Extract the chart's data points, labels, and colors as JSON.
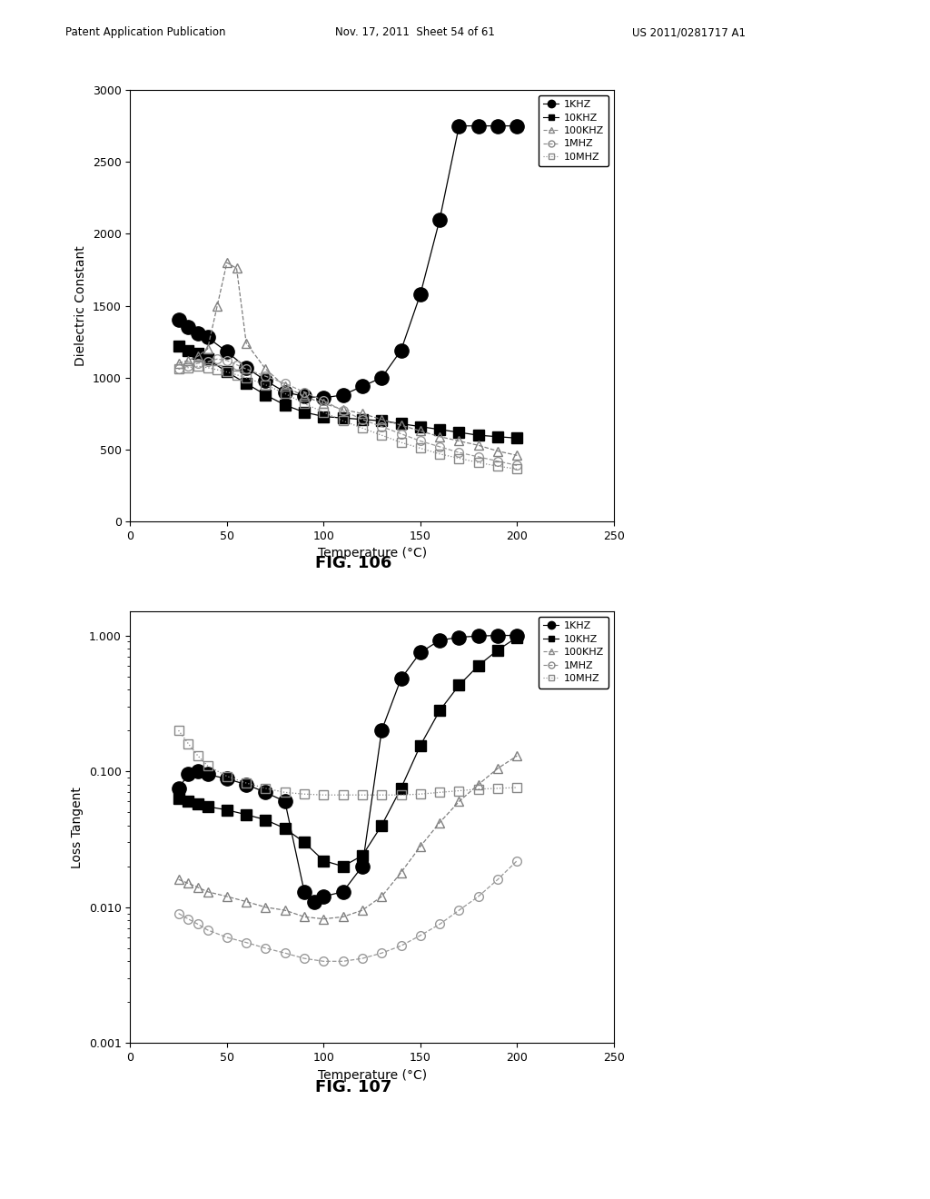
{
  "header_left": "Patent Application Publication",
  "header_mid": "Nov. 17, 2011  Sheet 54 of 61",
  "header_right": "US 2011/0281717 A1",
  "fig1_title": "FIG. 106",
  "fig2_title": "FIG. 107",
  "fig1_ylabel": "Dielectric Constant",
  "fig1_xlabel": "Temperature (°C)",
  "fig2_ylabel": "Loss Tangent",
  "fig2_xlabel": "Temperature (°C)",
  "fig1_ylim": [
    0,
    3000
  ],
  "fig1_xlim": [
    0,
    250
  ],
  "fig2_ylim_log": [
    0.001,
    1.5
  ],
  "fig2_xlim": [
    0,
    250
  ],
  "series": [
    "1KHZ",
    "10KHZ",
    "100KHZ",
    "1MHZ",
    "10MHZ"
  ],
  "fig1_data": {
    "1KHZ": {
      "x": [
        25,
        30,
        35,
        40,
        50,
        60,
        70,
        80,
        90,
        100,
        110,
        120,
        130,
        140,
        150,
        160,
        170,
        180,
        190,
        200
      ],
      "y": [
        1400,
        1350,
        1310,
        1280,
        1180,
        1070,
        980,
        900,
        870,
        860,
        880,
        940,
        1000,
        1190,
        1580,
        2100,
        2750,
        2750,
        2750,
        2750
      ]
    },
    "10KHZ": {
      "x": [
        25,
        30,
        35,
        40,
        50,
        60,
        70,
        80,
        90,
        100,
        110,
        120,
        130,
        140,
        150,
        160,
        170,
        180,
        190,
        200
      ],
      "y": [
        1220,
        1190,
        1170,
        1130,
        1040,
        960,
        880,
        810,
        760,
        730,
        720,
        710,
        700,
        680,
        660,
        640,
        620,
        600,
        590,
        580
      ]
    },
    "100KHZ": {
      "x": [
        25,
        30,
        35,
        40,
        45,
        50,
        55,
        60,
        70,
        80,
        90,
        100,
        110,
        120,
        130,
        140,
        150,
        160,
        170,
        180,
        190,
        200
      ],
      "y": [
        1100,
        1120,
        1150,
        1200,
        1500,
        1800,
        1760,
        1240,
        1060,
        940,
        870,
        820,
        780,
        750,
        710,
        670,
        630,
        590,
        560,
        530,
        490,
        460
      ]
    },
    "1MHZ": {
      "x": [
        25,
        30,
        35,
        40,
        45,
        50,
        55,
        60,
        70,
        80,
        90,
        100,
        110,
        120,
        130,
        140,
        150,
        160,
        170,
        180,
        190,
        200
      ],
      "y": [
        1060,
        1080,
        1100,
        1110,
        1130,
        1120,
        1090,
        1060,
        1010,
        960,
        900,
        840,
        770,
        710,
        660,
        610,
        560,
        520,
        480,
        450,
        420,
        390
      ]
    },
    "10MHZ": {
      "x": [
        25,
        30,
        35,
        40,
        45,
        50,
        55,
        60,
        70,
        80,
        90,
        100,
        110,
        120,
        130,
        140,
        150,
        160,
        170,
        180,
        190,
        200
      ],
      "y": [
        1060,
        1070,
        1080,
        1070,
        1055,
        1040,
        1020,
        1000,
        950,
        890,
        820,
        760,
        700,
        650,
        600,
        550,
        510,
        470,
        440,
        410,
        385,
        365
      ]
    }
  },
  "fig2_data": {
    "1KHZ": {
      "x": [
        25,
        30,
        35,
        40,
        50,
        60,
        70,
        80,
        90,
        95,
        100,
        110,
        120,
        130,
        140,
        150,
        160,
        170,
        180,
        190,
        200
      ],
      "y": [
        0.075,
        0.095,
        0.1,
        0.095,
        0.088,
        0.08,
        0.07,
        0.06,
        0.013,
        0.011,
        0.012,
        0.013,
        0.02,
        0.2,
        0.48,
        0.75,
        0.92,
        0.97,
        0.99,
        1.0,
        1.0
      ]
    },
    "10KHZ": {
      "x": [
        25,
        30,
        35,
        40,
        50,
        60,
        70,
        80,
        90,
        100,
        110,
        120,
        130,
        140,
        150,
        160,
        170,
        180,
        190,
        200
      ],
      "y": [
        0.063,
        0.06,
        0.058,
        0.055,
        0.052,
        0.048,
        0.044,
        0.038,
        0.03,
        0.022,
        0.02,
        0.024,
        0.04,
        0.075,
        0.155,
        0.28,
        0.43,
        0.6,
        0.78,
        0.97
      ]
    },
    "100KHZ": {
      "x": [
        25,
        30,
        35,
        40,
        50,
        60,
        70,
        80,
        90,
        100,
        110,
        120,
        130,
        140,
        150,
        160,
        170,
        180,
        190,
        200
      ],
      "y": [
        0.016,
        0.015,
        0.014,
        0.013,
        0.012,
        0.011,
        0.01,
        0.0095,
        0.0085,
        0.0082,
        0.0085,
        0.0095,
        0.012,
        0.018,
        0.028,
        0.042,
        0.06,
        0.08,
        0.105,
        0.13
      ]
    },
    "1MHZ": {
      "x": [
        25,
        30,
        35,
        40,
        50,
        60,
        70,
        80,
        90,
        100,
        110,
        120,
        130,
        140,
        150,
        160,
        170,
        180,
        190,
        200
      ],
      "y": [
        0.009,
        0.0082,
        0.0075,
        0.0068,
        0.006,
        0.0055,
        0.005,
        0.0046,
        0.0042,
        0.004,
        0.004,
        0.0042,
        0.0046,
        0.0052,
        0.0062,
        0.0075,
        0.0095,
        0.012,
        0.016,
        0.022
      ]
    },
    "10MHZ": {
      "x": [
        25,
        30,
        35,
        40,
        50,
        60,
        70,
        80,
        90,
        100,
        110,
        120,
        130,
        140,
        150,
        160,
        170,
        180,
        190,
        200
      ],
      "y": [
        0.2,
        0.16,
        0.13,
        0.11,
        0.092,
        0.082,
        0.075,
        0.07,
        0.068,
        0.067,
        0.067,
        0.067,
        0.067,
        0.067,
        0.068,
        0.07,
        0.072,
        0.074,
        0.075,
        0.076
      ]
    }
  },
  "colors": {
    "1KHZ": "#000000",
    "10KHZ": "#000000",
    "100KHZ": "#808080",
    "1MHZ": "#999999",
    "10MHZ": "#888888"
  },
  "linestyles": {
    "1KHZ": "-",
    "10KHZ": "-",
    "100KHZ": "--",
    "1MHZ": "--",
    "10MHZ": ":"
  },
  "markers": {
    "1KHZ": "o",
    "10KHZ": "s",
    "100KHZ": "^",
    "1MHZ": "o",
    "10MHZ": "s"
  },
  "markerfill": {
    "1KHZ": "black",
    "10KHZ": "black",
    "100KHZ": "none",
    "1MHZ": "none",
    "10MHZ": "none"
  }
}
